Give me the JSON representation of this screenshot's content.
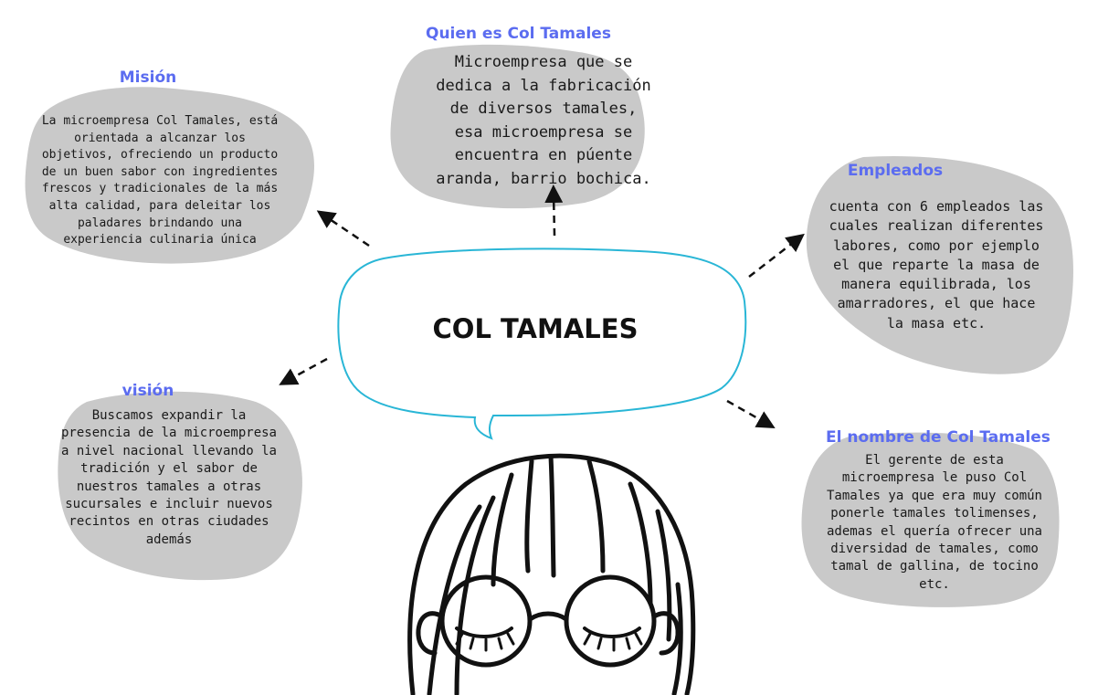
{
  "colors": {
    "heading": "#5b6cf0",
    "blob": "#c9c9c9",
    "bubble_outline": "#29b6d6",
    "text": "#1a1a1a"
  },
  "center": {
    "title": "COL TAMALES"
  },
  "nodes": {
    "quien_es": {
      "heading": "Quien es Col Tamales",
      "body": "Microempresa que se\ndedica a la fabricación\nde diversos tamales,\nesa microempresa se\nencuentra en púente\naranda, barrio bochica."
    },
    "mision": {
      "heading": "Misión",
      "body": "La microempresa Col Tamales, está\norientada a alcanzar los\nobjetivos, ofreciendo un producto\nde un buen sabor con ingredientes\nfrescos y tradicionales de la más\nalta calidad, para deleitar los\npaladares brindando una\nexperiencia culinaria única"
    },
    "empleados": {
      "heading": "Empleados",
      "body": "cuenta con 6 empleados las\ncuales realizan diferentes\nlabores, como por ejemplo\nel que reparte la masa de\nmanera equilibrada, los\namarradores, el que hace\nla masa etc."
    },
    "vision": {
      "heading": "visión",
      "body": "Buscamos expandir la\npresencia de la microempresa\na nivel nacional llevando la\ntradición y el sabor de\nnuestros tamales a otras\nsucursales e incluir nuevos\nrecintos en otras ciudades\nademás"
    },
    "nombre": {
      "heading": "El nombre de Col Tamales",
      "body": "El gerente de esta\nmicroempresa le puso Col\nTamales ya que era muy común\nponerle tamales tolimenses,\nademas el quería ofrecer una\ndiversidad de tamales, como\ntamal de gallina, de tocino\netc."
    }
  }
}
